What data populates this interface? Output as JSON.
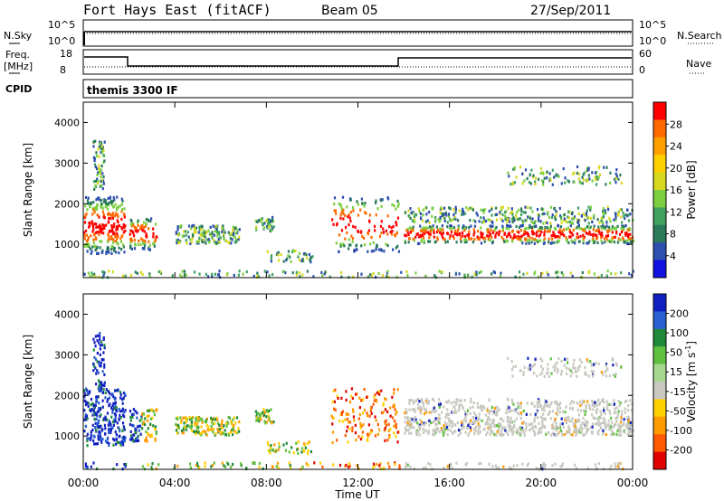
{
  "header": {
    "radar": "Fort Hays East (fitACF)",
    "beam": "Beam 05",
    "date": "27/Sep/2011"
  },
  "noise_panel": {
    "left_label": "N.Sky",
    "right_label": "N.Search",
    "left_ticks": [
      "10^5",
      "10^0"
    ],
    "right_ticks": [
      "10^5",
      "10^0"
    ]
  },
  "freq_panel": {
    "left_label_1": "Freq.",
    "left_label_2": "[MHz]",
    "right_label": "Nave",
    "left_ticks": [
      "18",
      "8"
    ],
    "right_ticks": [
      "60",
      "0"
    ]
  },
  "cpid_panel": {
    "label": "CPID",
    "value": "themis 3300 IF"
  },
  "chart_data": [
    {
      "type": "heatmap",
      "name_ref": "power",
      "ylabel": "Slant Range [km]",
      "yticks": [
        1000,
        2000,
        3000,
        4000
      ],
      "ylim": [
        180,
        4500
      ],
      "xlim_hours": [
        0,
        24
      ],
      "colorbar": {
        "label": "Power [dB]",
        "ticks": [
          "28",
          "24",
          "20",
          "16",
          "12",
          "8",
          "4"
        ],
        "colors": [
          "#ff0000",
          "#ff6a00",
          "#ffa000",
          "#ffd000",
          "#d8d820",
          "#7cd040",
          "#40a060",
          "#2a7a5a",
          "#2c4fb0",
          "#1010e0"
        ]
      }
    },
    {
      "type": "heatmap",
      "name_ref": "velocity",
      "ylabel": "Slant Range [km]",
      "yticks": [
        1000,
        2000,
        3000,
        4000
      ],
      "ylim": [
        180,
        4500
      ],
      "xlim_hours": [
        0,
        24
      ],
      "xticks": [
        "00:00",
        "04:00",
        "08:00",
        "12:00",
        "16:00",
        "20:00",
        "00:00"
      ],
      "xlabel": "Time UT",
      "colorbar": {
        "label": "Velocity [m s",
        "label_sup": "-1",
        "label_end": "]",
        "ticks": [
          "200",
          "100",
          "50",
          "15",
          "-15",
          "-50",
          "-100",
          "-200"
        ],
        "colors": [
          "#1020c0",
          "#2a60d0",
          "#208a3a",
          "#60c040",
          "#a8d890",
          "#c8c8c0",
          "#ffd000",
          "#ff9a00",
          "#ff5a00",
          "#e00000"
        ]
      }
    }
  ]
}
